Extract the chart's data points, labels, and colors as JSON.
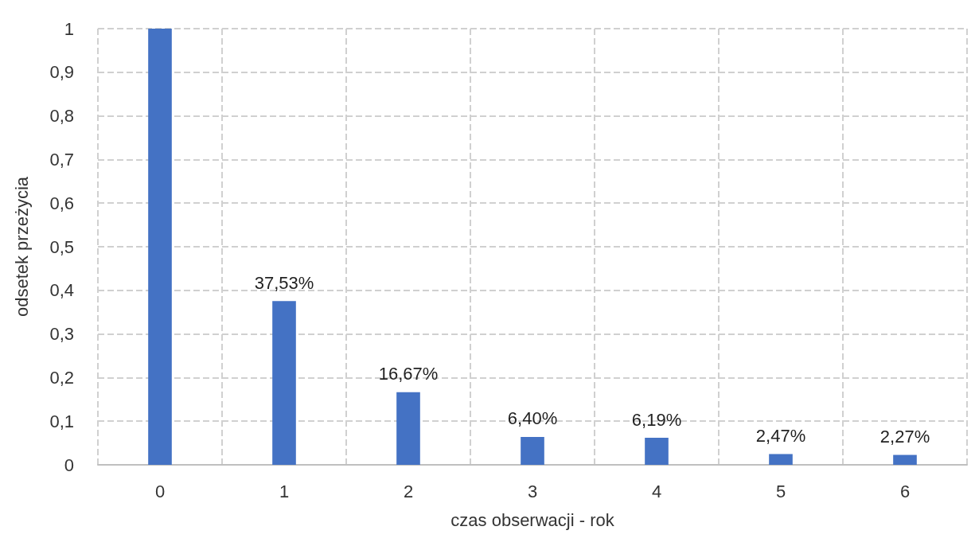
{
  "chart_data": {
    "type": "bar",
    "xlabel": "czas obserwacji - rok",
    "ylabel": "odsetek przeżycia",
    "categories": [
      "0",
      "1",
      "2",
      "3",
      "4",
      "5",
      "6"
    ],
    "values": [
      1,
      0.3753,
      0.1667,
      0.064,
      0.0619,
      0.0247,
      0.0227
    ],
    "value_labels": [
      null,
      "37,53%",
      "16,67%",
      "6,40%",
      "6,19%",
      "2,47%",
      "2,27%"
    ],
    "color": "#4472c4",
    "ylim": [
      0,
      1
    ],
    "yticks": [
      0,
      {
        "value": 0.1,
        "label": "0,1"
      },
      {
        "value": 0.2,
        "label": "0,2"
      },
      {
        "value": 0.3,
        "label": "0,3"
      },
      {
        "value": 0.4,
        "label": "0,4"
      },
      {
        "value": 0.5,
        "label": "0,5"
      },
      {
        "value": 0.6,
        "label": "0,6"
      },
      {
        "value": 0.7,
        "label": "0,7"
      },
      {
        "value": 0.8,
        "label": "0,8"
      },
      {
        "value": 0.9,
        "label": "0,9"
      },
      1
    ],
    "grid": true
  }
}
